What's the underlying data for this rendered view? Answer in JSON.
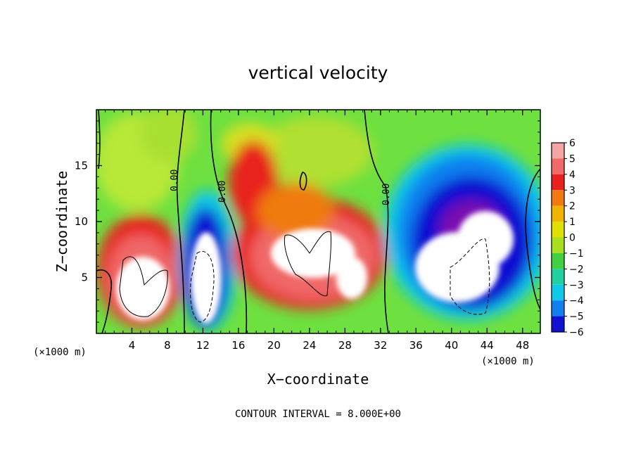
{
  "chart_data": {
    "type": "heatmap",
    "title": "vertical velocity",
    "xlabel": "X−coordinate",
    "ylabel": "Z−coordinate",
    "x_unit_label": "(×1000 m)",
    "y_unit_label": "(×1000 m)",
    "xlim": [
      0,
      50
    ],
    "ylim": [
      0,
      20
    ],
    "x_ticks": [
      4,
      8,
      12,
      16,
      20,
      24,
      28,
      32,
      36,
      40,
      44,
      48
    ],
    "y_ticks": [
      5,
      10,
      15
    ],
    "footer": "CONTOUR INTERVAL = 8.000E+00",
    "contour_labels": [
      "0.00",
      "0.00",
      "0.00"
    ],
    "colorbar": {
      "levels": [
        "6",
        "5",
        "4",
        "3",
        "2",
        "1",
        "0",
        "−1",
        "−2",
        "−3",
        "−4",
        "−5",
        "−6"
      ],
      "colors": [
        "#f4a6a6",
        "#f06868",
        "#e8201e",
        "#f07a10",
        "#f0b400",
        "#e0e000",
        "#a8e020",
        "#40d040",
        "#20d0a0",
        "#10c8e8",
        "#1080f0",
        "#1010d0",
        "#7a10b0"
      ]
    },
    "field": {
      "background_value": 0.7,
      "updrafts": [
        {
          "x": 5.0,
          "z": 4.5,
          "value": 9
        },
        {
          "x": 11.5,
          "z": 3.5,
          "value": -9
        },
        {
          "x": 19.0,
          "z": 12.5,
          "value": 4
        },
        {
          "x": 23.0,
          "z": 7.0,
          "value": 9
        },
        {
          "x": 28.0,
          "z": 6.0,
          "value": 8
        },
        {
          "x": 43.0,
          "z": 6.0,
          "value": -9
        },
        {
          "x": 44.0,
          "z": 13.0,
          "value": -4
        }
      ]
    }
  }
}
